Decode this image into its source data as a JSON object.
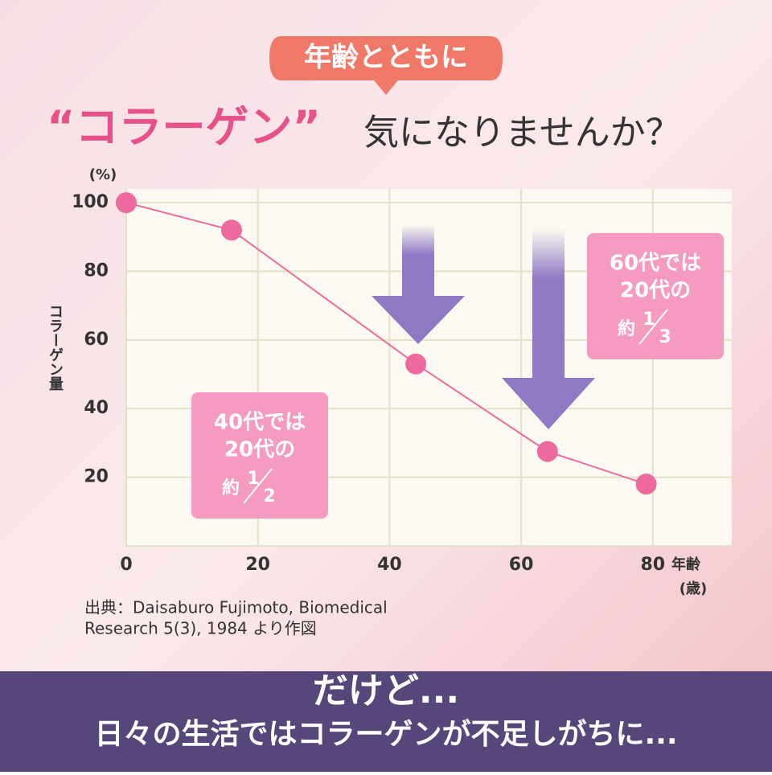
{
  "header": {
    "badge": "年齢とともに",
    "title_highlight": "“コラーゲン”",
    "title_rest": "気になりませんか？"
  },
  "chart_data": {
    "type": "line",
    "y_unit": "(%)",
    "y_label": "コラーゲン量",
    "x_label": "年齢",
    "x_unit": "(歳)",
    "x": [
      0,
      16,
      44,
      64,
      79
    ],
    "values": [
      100,
      92,
      53,
      27.5,
      18
    ],
    "color": "#ec6a9e",
    "xlim": [
      0,
      92
    ],
    "ylim": [
      0,
      104
    ],
    "xticks": [
      0,
      20,
      40,
      60,
      80
    ],
    "yticks": [
      20,
      40,
      60,
      80,
      100
    ],
    "grid": true,
    "annotations": [
      {
        "lines": [
          "40代では",
          "20代の"
        ],
        "prefix": "約",
        "numerator": "1",
        "denominator": "2"
      },
      {
        "lines": [
          "60代では",
          "20代の"
        ],
        "prefix": "約",
        "numerator": "1",
        "denominator": "3"
      }
    ]
  },
  "source": [
    "出典：Daisaburo Fujimoto, Biomedical",
    "Research 5(3), 1984 より作図"
  ],
  "footer": {
    "lead": "だけど...",
    "text": "日々の生活ではコラーゲンが不足しがちに..."
  }
}
